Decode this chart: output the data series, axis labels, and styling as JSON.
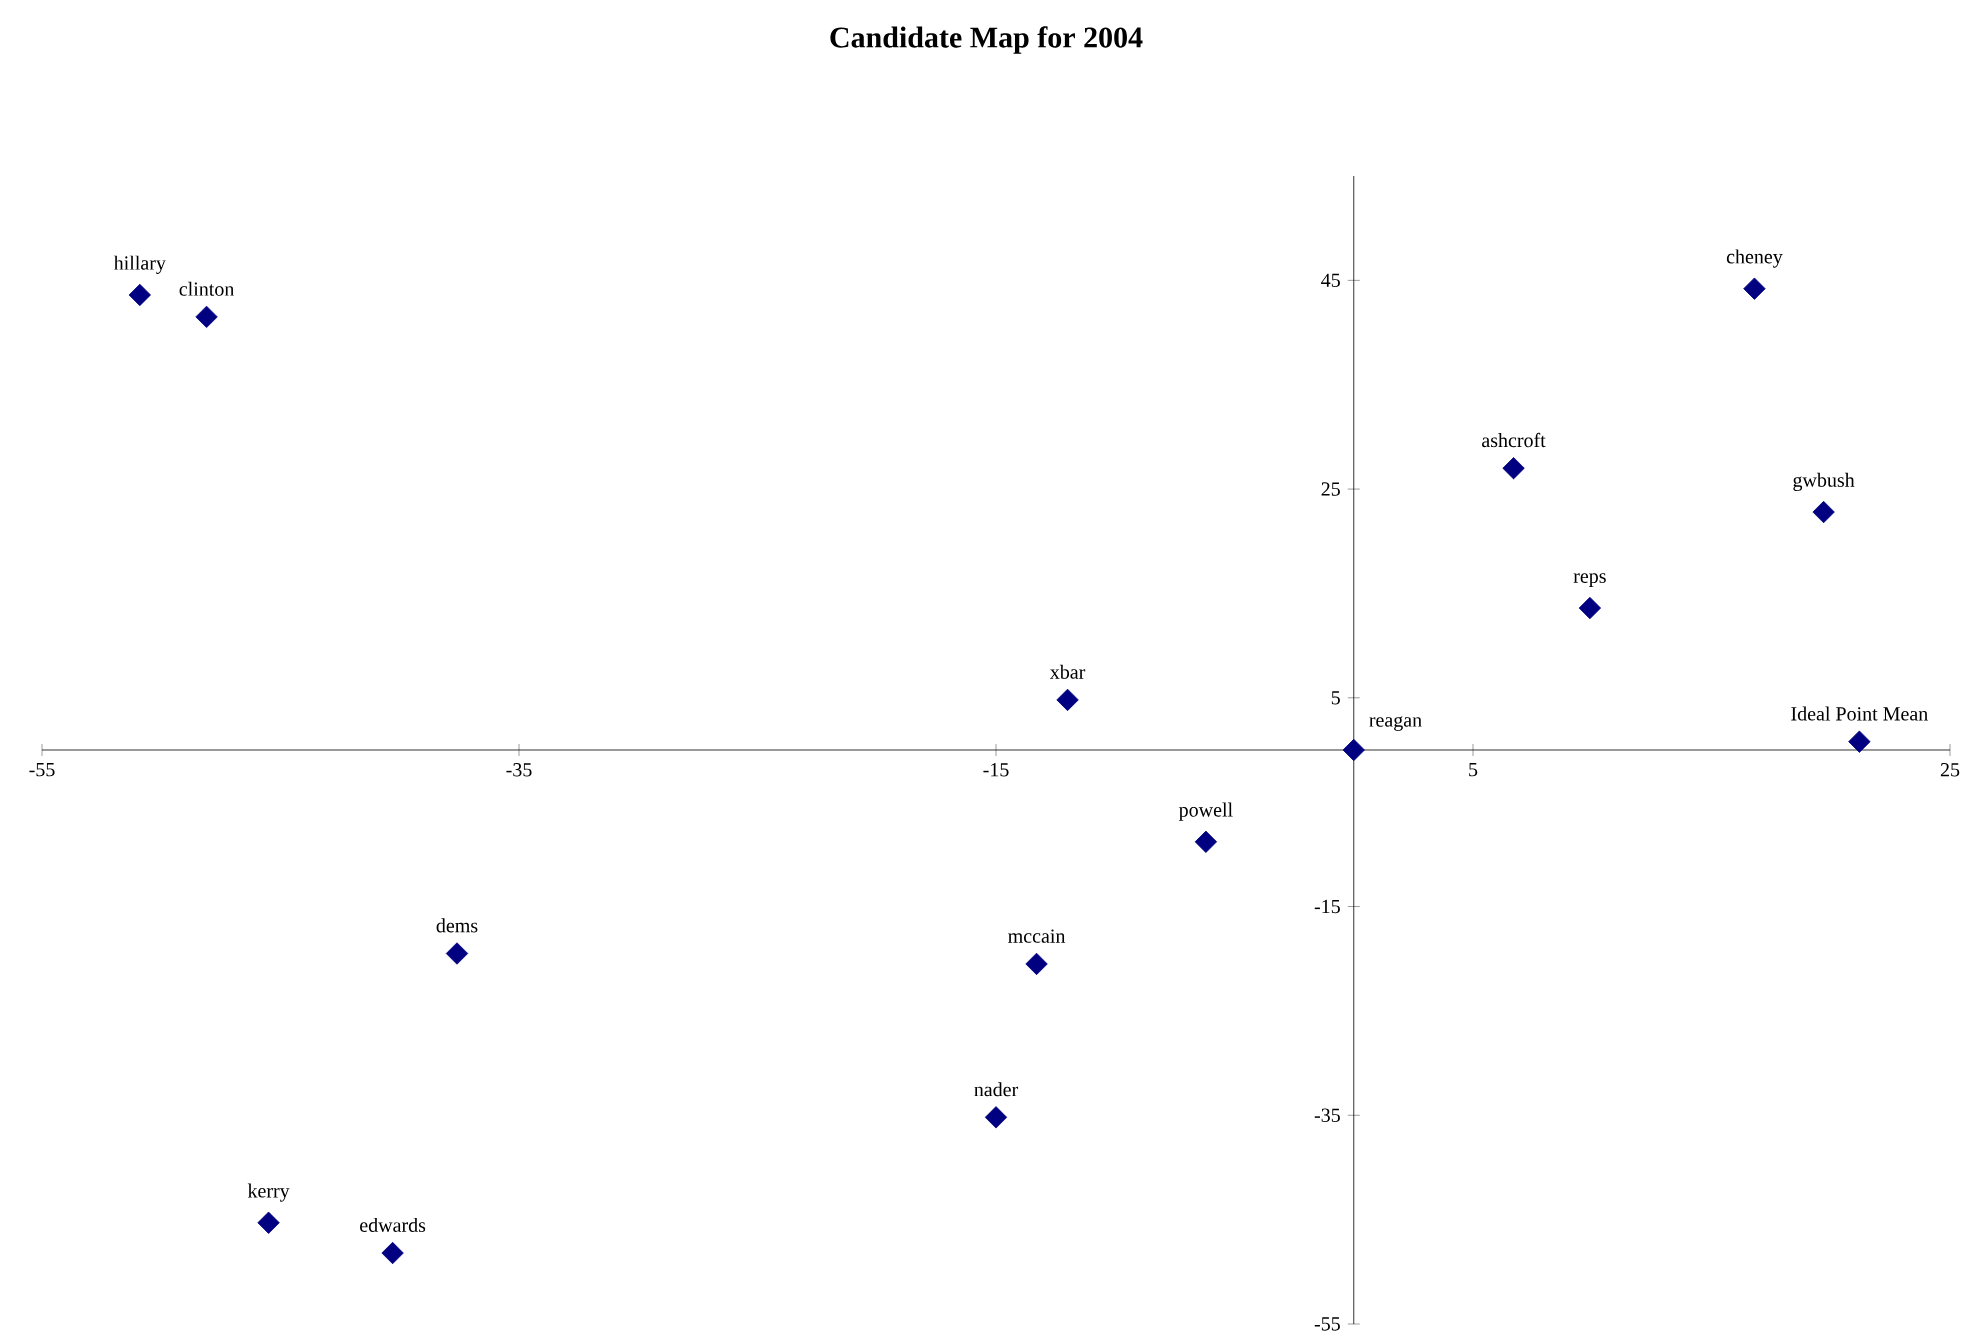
{
  "chart_data": {
    "type": "scatter",
    "title": "Candidate Map for 2004",
    "x": [
      -50.9,
      -48.1,
      16.8,
      6.7,
      19.7,
      9.9,
      -12.0,
      0,
      21.2,
      -6.2,
      -37.6,
      -13.3,
      -15.0,
      -45.5,
      -40.3
    ],
    "values": [
      43.6,
      41.5,
      44.2,
      27.0,
      22.8,
      13.6,
      4.8,
      0,
      0.8,
      -8.8,
      -19.5,
      -20.5,
      -35.2,
      -45.3,
      -48.2
    ],
    "color": "#000080",
    "marker": "diamond",
    "grid": false,
    "xlim": [
      -55,
      25
    ],
    "ylim": [
      -55,
      55
    ],
    "xticks": [
      -55,
      -35,
      -15,
      5,
      25
    ],
    "yticks": [
      -55,
      -35,
      -15,
      5,
      25,
      45
    ],
    "annotations": [
      {
        "text": "hillary",
        "x": -50.9,
        "y": 43.6
      },
      {
        "text": "clinton",
        "x": -48.1,
        "y": 41.5
      },
      {
        "text": "cheney",
        "x": 16.8,
        "y": 44.2
      },
      {
        "text": "ashcroft",
        "x": 6.7,
        "y": 27.0
      },
      {
        "text": "gwbush",
        "x": 19.7,
        "y": 22.8
      },
      {
        "text": "reps",
        "x": 9.9,
        "y": 13.6
      },
      {
        "text": "xbar",
        "x": -12.0,
        "y": 4.8
      },
      {
        "text": "reagan",
        "x": 0,
        "y": 0
      },
      {
        "text": "Ideal Point Mean",
        "x": 21.2,
        "y": 0.8
      },
      {
        "text": "powell",
        "x": -6.2,
        "y": -8.8
      },
      {
        "text": "dems",
        "x": -37.6,
        "y": -19.5
      },
      {
        "text": "mccain",
        "x": -13.3,
        "y": -20.5
      },
      {
        "text": "nader",
        "x": -15.0,
        "y": -35.2
      },
      {
        "text": "kerry",
        "x": -45.5,
        "y": -45.3
      },
      {
        "text": "edwards",
        "x": -40.3,
        "y": -48.2
      }
    ]
  }
}
